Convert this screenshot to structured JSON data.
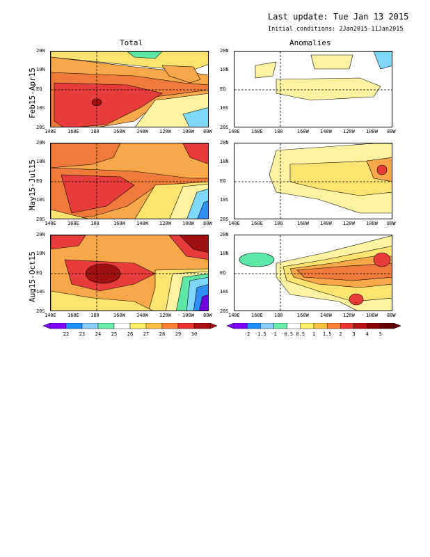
{
  "header": {
    "last_update": "Last update: Tue Jan 13 2015",
    "initial_conditions": "Initial conditions: 2Jan2015-11Jan2015"
  },
  "columns": {
    "total": "Total",
    "anomalies": "Anomalies"
  },
  "rows": [
    "Feb15-Apr15",
    "May15-Jul15",
    "Aug15-Oct15"
  ],
  "axes": {
    "lat_ticks": [
      "20N",
      "10N",
      "EQ",
      "10S",
      "20S"
    ],
    "lon_ticks": [
      "140E",
      "160E",
      "180",
      "160W",
      "140W",
      "120W",
      "100W",
      "80W"
    ]
  },
  "colorbar_total": {
    "labels": [
      "22",
      "23",
      "24",
      "25",
      "26",
      "27",
      "28",
      "29",
      "30"
    ],
    "colors": [
      "#7f00ff",
      "#1e90ff",
      "#87cefa",
      "#66eeaa",
      "#ffffff",
      "#ffee66",
      "#ffc040",
      "#ff8030",
      "#ee3333",
      "#aa1111"
    ]
  },
  "colorbar_anom": {
    "labels": [
      "-2",
      "-1.5",
      "-1",
      "-0.5",
      "0.5",
      "1",
      "1.5",
      "2",
      "3",
      "4",
      "5"
    ],
    "colors": [
      "#7f00ff",
      "#1e90ff",
      "#87cefa",
      "#66eeaa",
      "#ffffff",
      "#ffee66",
      "#ffc040",
      "#ff8030",
      "#ee3333",
      "#bb1111",
      "#880000",
      "#660000"
    ]
  },
  "palette": {
    "red": "#e83c3c",
    "orange_red": "#f07a3a",
    "orange": "#f8a848",
    "yellow": "#fde470",
    "light_yellow": "#fff2a0",
    "green": "#5ee8a8",
    "cyan": "#7fd8f8",
    "blue": "#2f8ff5",
    "dark_blue": "#3040e0",
    "violet": "#7000e0",
    "dark_red": "#a01010"
  }
}
